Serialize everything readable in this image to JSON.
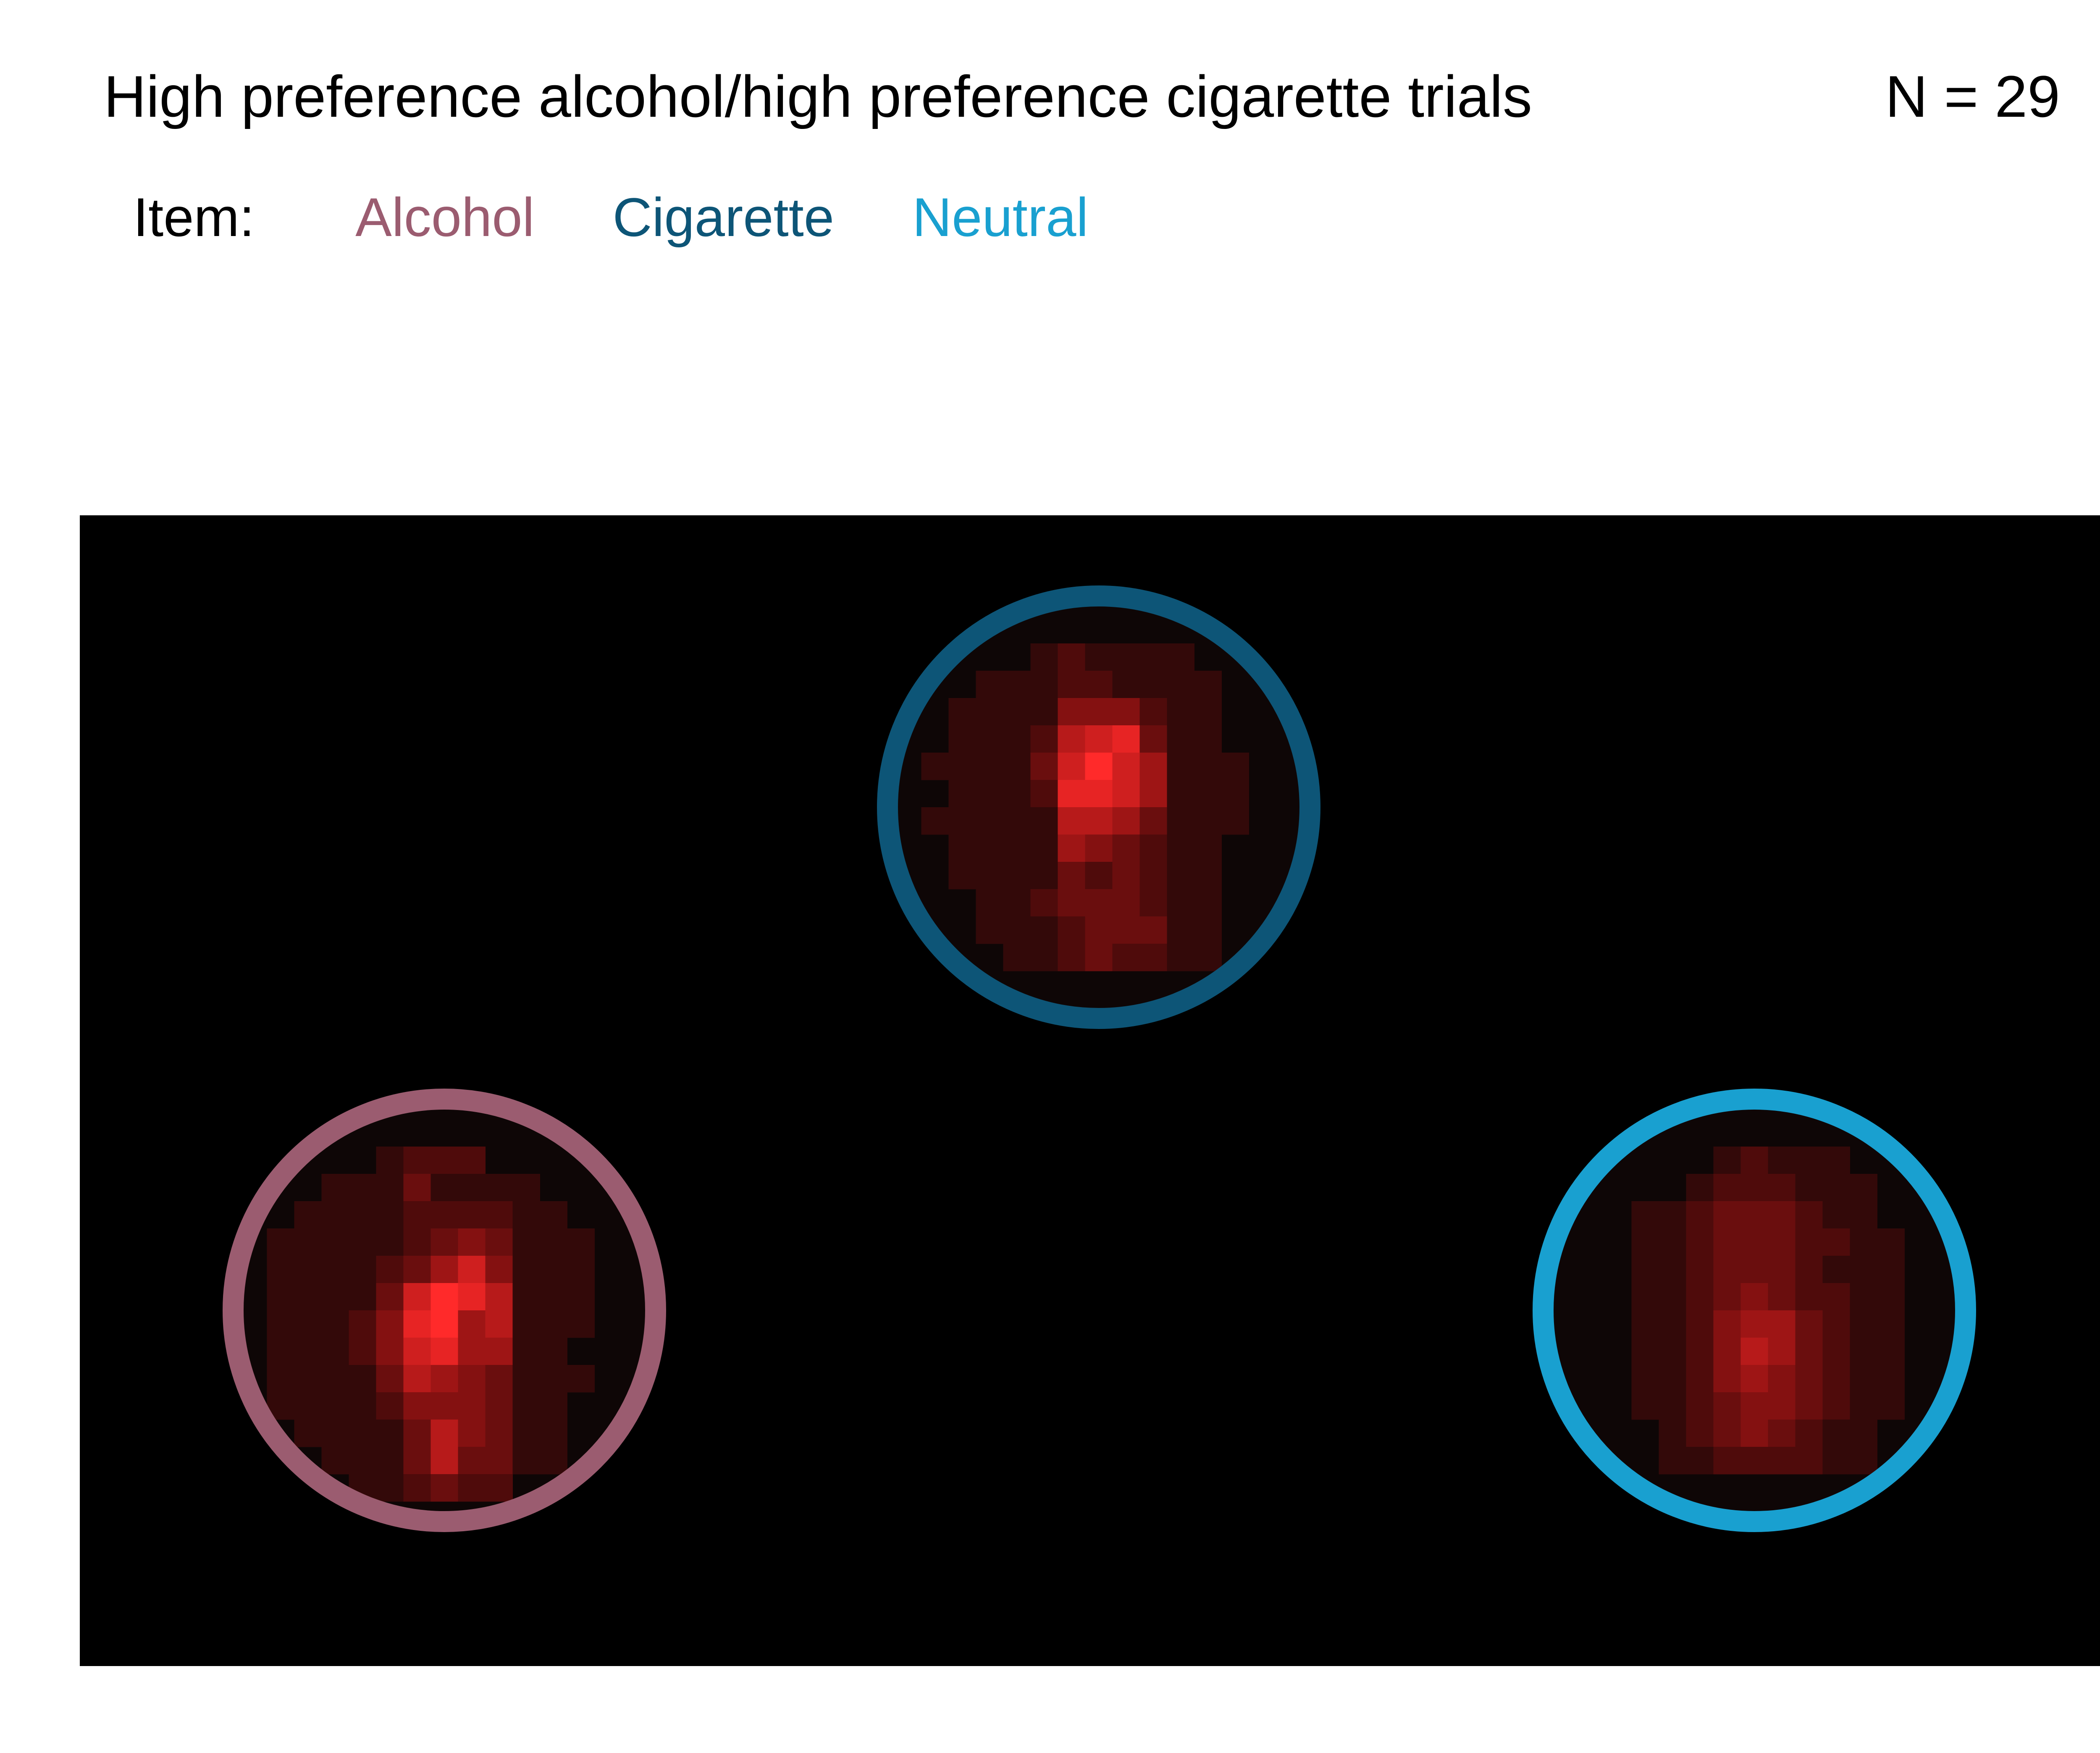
{
  "chart_data": {
    "type": "heatmap",
    "title": "High preference alcohol/high preference cigarette trials",
    "annotation": "N = 29",
    "legend_title": "Item:",
    "background": "#000000",
    "heat_color": "#ff2a2a",
    "items": [
      {
        "name": "Alcohol",
        "color": "#9b5c70",
        "rows": [
          "000000000000000",
          "000000000000000",
          "000001222000000",
          "000111311110000",
          "001111222211000",
          "011111234311100",
          "011112357411100",
          "011113798611100",
          "011124895611100",
          "011124785511000",
          "011113654311100",
          "011112444311000",
          "001111364311000",
          "000111363311000",
          "000011232200000",
          "000000000000000"
        ]
      },
      {
        "name": "Cigarette",
        "color": "#0d5577",
        "rows": [
          "000000000000000",
          "000000000000000",
          "000001211110000",
          "000111221111000",
          "001111444211000",
          "001112678311000",
          "011113797511100",
          "001112887511100",
          "011111665311100",
          "001111543211000",
          "001111323211000",
          "000112333211000",
          "000111233311000",
          "000011232211000",
          "000000000000000",
          "000000000000000"
        ]
      },
      {
        "name": "Neutral",
        "color": "#19a0d0",
        "rows": [
          "000000000000000",
          "000000000000000",
          "000000121110000",
          "000001222111000",
          "000112333211000",
          "000112333221100",
          "000112333211100",
          "000112343221100",
          "000112455321100",
          "000112465321100",
          "000112454321100",
          "000112344321100",
          "000012343211000",
          "000011222211000",
          "000000000000000",
          "000000000000000"
        ]
      }
    ]
  }
}
